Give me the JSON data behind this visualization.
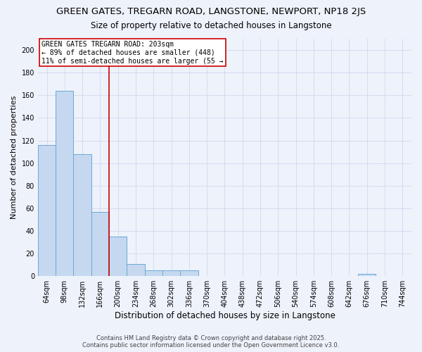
{
  "title1": "GREEN GATES, TREGARN ROAD, LANGSTONE, NEWPORT, NP18 2JS",
  "title2": "Size of property relative to detached houses in Langstone",
  "xlabel": "Distribution of detached houses by size in Langstone",
  "ylabel": "Number of detached properties",
  "categories": [
    "64sqm",
    "98sqm",
    "132sqm",
    "166sqm",
    "200sqm",
    "234sqm",
    "268sqm",
    "302sqm",
    "336sqm",
    "370sqm",
    "404sqm",
    "438sqm",
    "472sqm",
    "506sqm",
    "540sqm",
    "574sqm",
    "608sqm",
    "642sqm",
    "676sqm",
    "710sqm",
    "744sqm"
  ],
  "values": [
    116,
    164,
    108,
    57,
    35,
    11,
    5,
    5,
    5,
    0,
    0,
    0,
    0,
    0,
    0,
    0,
    0,
    0,
    2,
    0,
    0
  ],
  "bar_color": "#c5d8f0",
  "bar_edge_color": "#6aaad4",
  "vline_x": 3.5,
  "vline_color": "#cc0000",
  "annotation_line1": "GREEN GATES TREGARN ROAD: 203sqm",
  "annotation_line2": "← 89% of detached houses are smaller (448)",
  "annotation_line3": "11% of semi-detached houses are larger (55 →",
  "annotation_box_color": "#ffffff",
  "annotation_box_edge": "#cc0000",
  "footer1": "Contains HM Land Registry data © Crown copyright and database right 2025.",
  "footer2": "Contains public sector information licensed under the Open Government Licence v3.0.",
  "ylim": [
    0,
    210
  ],
  "background_color": "#eef2fb",
  "grid_color": "#d0d8ef"
}
